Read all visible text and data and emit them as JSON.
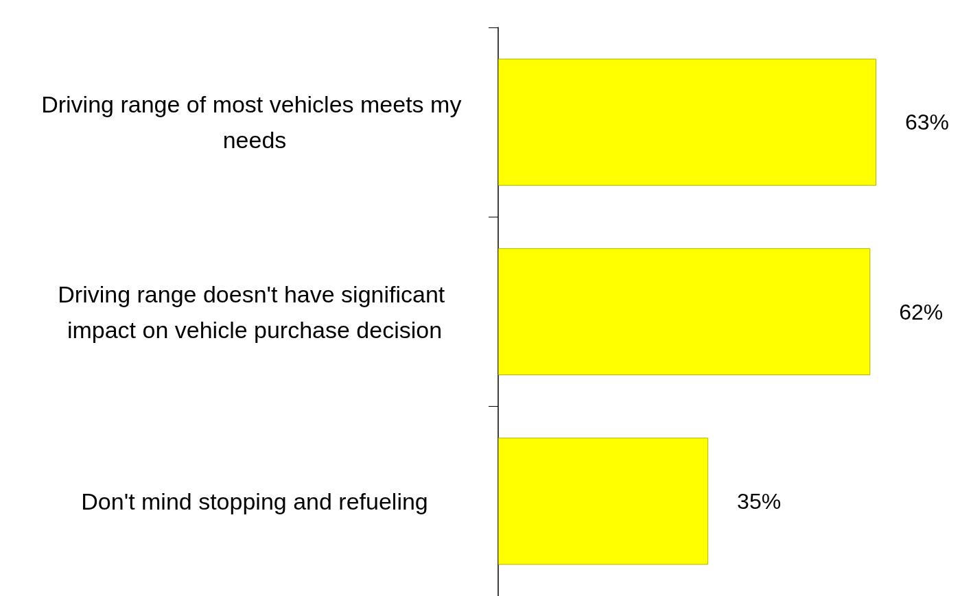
{
  "chart_data": {
    "type": "bar",
    "orientation": "horizontal",
    "categories": [
      "Driving range of most vehicles meets my needs",
      "Driving range doesn't have significant impact on vehicle purchase decision",
      "Don't mind stopping and refueling"
    ],
    "values": [
      63,
      62,
      35
    ],
    "value_labels": [
      "63%",
      "62%",
      "35%"
    ],
    "color": "#ffff00"
  }
}
